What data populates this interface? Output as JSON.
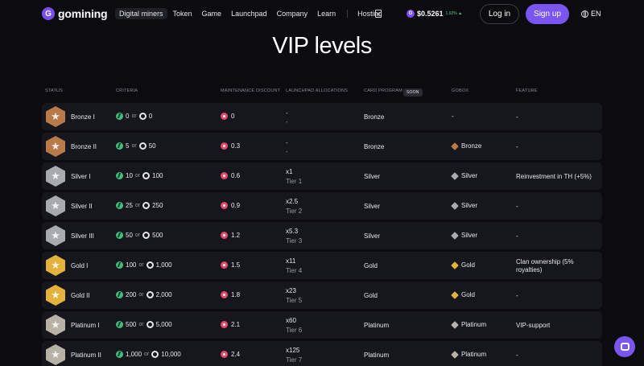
{
  "header": {
    "brand": "gomining",
    "brand_mark": "G",
    "nav": [
      "Digital miners",
      "Token",
      "Game",
      "Launchpad",
      "Company",
      "Learn"
    ],
    "nav_hosting": "Hosting",
    "price": "$0.5261",
    "price_change": "1.92% ▲",
    "coin_symbol": "G",
    "login_label": "Log in",
    "signup_label": "Sign up",
    "language": "EN"
  },
  "page_title": "VIP levels",
  "columns": {
    "status": "STATUS",
    "criteria": "CRITERIA",
    "maintenance": "MAINTENANCE DISCOUNT",
    "launchpad": "LAUNCHPAD ALLOCATIONS",
    "card": "CARD PROGRAM",
    "soon": "SOON",
    "gobox": "GOBOX",
    "feature": "FEATURE"
  },
  "criteria_or": "or",
  "rows": [
    {
      "name": "Bronze I",
      "tier": "bronze",
      "criteria_a": "0",
      "criteria_b": "0",
      "maintenance": "0",
      "launch_line1": "-",
      "launch_line2": "-",
      "card": "Bronze",
      "gobox": "-",
      "feature": "-"
    },
    {
      "name": "Bronze II",
      "tier": "bronze",
      "criteria_a": "5",
      "criteria_b": "50",
      "maintenance": "0.3",
      "launch_line1": "-",
      "launch_line2": "-",
      "card": "Bronze",
      "gobox": "Bronze",
      "feature": "-"
    },
    {
      "name": "Silver I",
      "tier": "silver",
      "criteria_a": "10",
      "criteria_b": "100",
      "maintenance": "0.6",
      "launch_line1": "x1",
      "launch_line2": "Tier 1",
      "card": "Silver",
      "gobox": "Silver",
      "feature": "Reinvestment in TH (+5%)"
    },
    {
      "name": "Silver II",
      "tier": "silver",
      "criteria_a": "25",
      "criteria_b": "250",
      "maintenance": "0.9",
      "launch_line1": "x2.5",
      "launch_line2": "Tier 2",
      "card": "Silver",
      "gobox": "Silver",
      "feature": "-"
    },
    {
      "name": "Silver III",
      "tier": "silver",
      "criteria_a": "50",
      "criteria_b": "500",
      "maintenance": "1.2",
      "launch_line1": "x5.3",
      "launch_line2": "Tier 3",
      "card": "Silver",
      "gobox": "Silver",
      "feature": "-"
    },
    {
      "name": "Gold I",
      "tier": "gold",
      "criteria_a": "100",
      "criteria_b": "1,000",
      "maintenance": "1.5",
      "launch_line1": "x11",
      "launch_line2": "Tier 4",
      "card": "Gold",
      "gobox": "Gold",
      "feature": "Clan ownership (5% royalties)"
    },
    {
      "name": "Gold II",
      "tier": "gold",
      "criteria_a": "200",
      "criteria_b": "2,000",
      "maintenance": "1.8",
      "launch_line1": "x23",
      "launch_line2": "Tier 5",
      "card": "Gold",
      "gobox": "Gold",
      "feature": "-"
    },
    {
      "name": "Platinum I",
      "tier": "platinum",
      "criteria_a": "500",
      "criteria_b": "5,000",
      "maintenance": "2.1",
      "launch_line1": "x60",
      "launch_line2": "Tier 6",
      "card": "Platinum",
      "gobox": "Platinum",
      "feature": "VIP-support"
    },
    {
      "name": "Platinum II",
      "tier": "platinum",
      "criteria_a": "1,000",
      "criteria_b": "10,000",
      "maintenance": "2.4",
      "launch_line1": "x125",
      "launch_line2": "Tier 7",
      "card": "Platinum",
      "gobox": "Platinum",
      "feature": "-"
    }
  ],
  "tier_colors": {
    "bronze": "#b97a4a",
    "silver": "#a9a9b0",
    "gold": "#e3b23c",
    "platinum": "#b8b2a6"
  },
  "icons": {
    "badge": "star-badge-icon",
    "criteria_a": "gomining-token-icon",
    "criteria_b": "hashrate-icon",
    "maintenance": "discount-icon",
    "gobox": "gobox-cube-icon",
    "chat": "chat-icon"
  }
}
